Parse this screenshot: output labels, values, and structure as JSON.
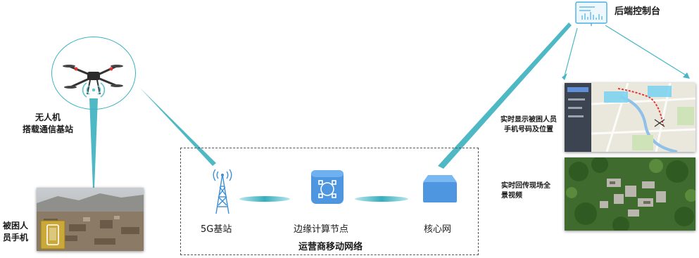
{
  "drone": {
    "label_line1": "无人机",
    "label_line2": "搭载通信基站"
  },
  "victim": {
    "label_line1": "被困人",
    "label_line2": "员手机"
  },
  "network": {
    "title": "运营商移动网络",
    "nodes": [
      {
        "label": "5G基站"
      },
      {
        "label": "边缘计算节点"
      },
      {
        "label": "核心网"
      }
    ]
  },
  "backend": {
    "label": "后端控制台"
  },
  "outputs": [
    {
      "line1": "实时显示被困人员",
      "line2": "手机号码及位置"
    },
    {
      "line1": "实时回传现场全",
      "line2": "景视频"
    }
  ],
  "colors": {
    "link": "#3fb5c4",
    "icon_blue": "#4a90d9",
    "accent_red": "#e53935"
  }
}
